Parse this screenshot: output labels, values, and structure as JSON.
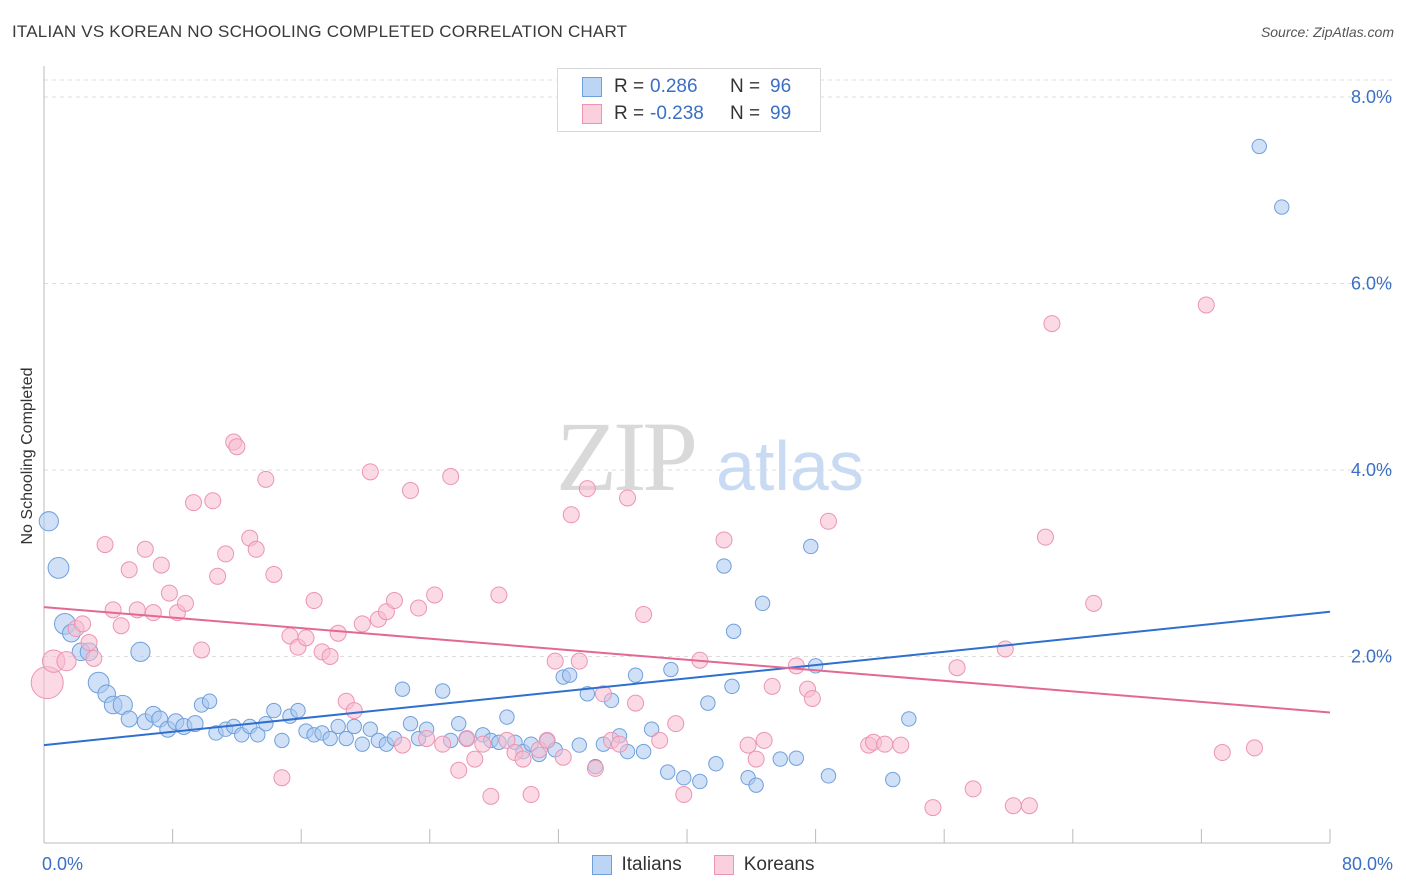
{
  "header": {
    "title": "ITALIAN VS KOREAN NO SCHOOLING COMPLETED CORRELATION CHART",
    "source": "Source: ZipAtlas.com"
  },
  "watermark": {
    "zip": "ZIP",
    "atlas": "atlas"
  },
  "legend_top": {
    "rows": [
      {
        "r_label": "R =",
        "r_value": "0.286",
        "n_label": "N =",
        "n_value": "96"
      },
      {
        "r_label": "R =",
        "r_value": "-0.238",
        "n_label": "N =",
        "n_value": "99"
      }
    ]
  },
  "legend_bottom": {
    "italians": "Italians",
    "koreans": "Koreans"
  },
  "colors": {
    "italians_fill": "#a9c8f0",
    "italians_stroke": "#6f9fdc",
    "italians_line": "#2f6fcf",
    "koreans_fill": "#f7bcd0",
    "koreans_stroke": "#ec94b2",
    "koreans_line": "#e46894",
    "tick_label": "#3b6fc4",
    "grid": "#dddddd"
  },
  "chart_data": {
    "type": "scatter",
    "title": "ITALIAN VS KOREAN NO SCHOOLING COMPLETED CORRELATION CHART",
    "xlabel": "",
    "ylabel": "No Schooling Completed",
    "xlim": [
      0,
      80
    ],
    "ylim": [
      0,
      8.0
    ],
    "x_tick_labels": [
      {
        "value": 0,
        "label": "0.0%"
      },
      {
        "value": 80,
        "label": "80.0%"
      }
    ],
    "y_tick_labels": [
      {
        "value": 2,
        "label": "2.0%"
      },
      {
        "value": 4,
        "label": "4.0%"
      },
      {
        "value": 6,
        "label": "6.0%"
      },
      {
        "value": 8,
        "label": "8.0%"
      }
    ],
    "grid": "horizontal dashed",
    "legend": "top-center",
    "series": [
      {
        "name": "Italians",
        "trend": [
          [
            0,
            1.05
          ],
          [
            80,
            2.48
          ]
        ],
        "points": [
          [
            0.3,
            3.45,
            1.2
          ],
          [
            0.9,
            2.95,
            1.3
          ],
          [
            1.3,
            2.35,
            1.3
          ],
          [
            1.7,
            2.25,
            1.1
          ],
          [
            2.3,
            2.05,
            1.1
          ],
          [
            2.8,
            2.05,
            1.1
          ],
          [
            3.4,
            1.72,
            1.3
          ],
          [
            3.9,
            1.6,
            1.1
          ],
          [
            4.3,
            1.48,
            1.1
          ],
          [
            4.9,
            1.48,
            1.2
          ],
          [
            5.3,
            1.33,
            1.0
          ],
          [
            6.0,
            2.05,
            1.2
          ],
          [
            6.3,
            1.3,
            1.0
          ],
          [
            6.8,
            1.38,
            1.0
          ],
          [
            7.2,
            1.33,
            1.0
          ],
          [
            7.7,
            1.22,
            1.0
          ],
          [
            8.2,
            1.3,
            1.0
          ],
          [
            8.7,
            1.25,
            1.0
          ],
          [
            9.4,
            1.28,
            1.0
          ],
          [
            9.8,
            1.48,
            0.9
          ],
          [
            10.3,
            1.52,
            0.9
          ],
          [
            10.7,
            1.18,
            0.9
          ],
          [
            11.3,
            1.22,
            0.9
          ],
          [
            11.8,
            1.25,
            0.9
          ],
          [
            12.3,
            1.16,
            0.9
          ],
          [
            12.8,
            1.25,
            0.9
          ],
          [
            13.3,
            1.16,
            0.9
          ],
          [
            13.8,
            1.28,
            0.9
          ],
          [
            14.3,
            1.42,
            0.9
          ],
          [
            14.8,
            1.1,
            0.9
          ],
          [
            15.3,
            1.36,
            0.9
          ],
          [
            15.8,
            1.42,
            0.9
          ],
          [
            16.3,
            1.2,
            0.9
          ],
          [
            16.8,
            1.16,
            0.9
          ],
          [
            17.3,
            1.18,
            0.9
          ],
          [
            17.8,
            1.12,
            0.9
          ],
          [
            18.3,
            1.25,
            0.9
          ],
          [
            18.8,
            1.12,
            0.9
          ],
          [
            19.3,
            1.25,
            0.9
          ],
          [
            19.8,
            1.06,
            0.9
          ],
          [
            20.3,
            1.22,
            0.9
          ],
          [
            20.8,
            1.1,
            0.9
          ],
          [
            21.3,
            1.06,
            0.9
          ],
          [
            21.8,
            1.12,
            0.9
          ],
          [
            22.3,
            1.65,
            0.9
          ],
          [
            22.8,
            1.28,
            0.9
          ],
          [
            23.3,
            1.12,
            0.9
          ],
          [
            23.8,
            1.22,
            0.9
          ],
          [
            24.8,
            1.63,
            0.9
          ],
          [
            25.3,
            1.1,
            0.9
          ],
          [
            25.8,
            1.28,
            0.9
          ],
          [
            26.3,
            1.12,
            0.9
          ],
          [
            27.3,
            1.16,
            0.9
          ],
          [
            27.8,
            1.1,
            0.9
          ],
          [
            28.3,
            1.08,
            0.9
          ],
          [
            28.8,
            1.35,
            0.9
          ],
          [
            29.3,
            1.08,
            0.9
          ],
          [
            29.8,
            0.98,
            0.9
          ],
          [
            30.3,
            1.06,
            0.9
          ],
          [
            30.8,
            0.95,
            0.9
          ],
          [
            31.3,
            1.1,
            0.9
          ],
          [
            31.8,
            1.0,
            0.9
          ],
          [
            32.3,
            1.78,
            0.9
          ],
          [
            32.7,
            1.8,
            0.9
          ],
          [
            33.3,
            1.05,
            0.9
          ],
          [
            33.8,
            1.6,
            0.9
          ],
          [
            34.3,
            0.82,
            0.9
          ],
          [
            34.8,
            1.06,
            0.9
          ],
          [
            35.3,
            1.53,
            0.9
          ],
          [
            35.8,
            1.15,
            0.9
          ],
          [
            36.3,
            0.98,
            0.9
          ],
          [
            36.8,
            1.8,
            0.9
          ],
          [
            37.3,
            0.98,
            0.9
          ],
          [
            37.8,
            1.22,
            0.9
          ],
          [
            38.8,
            0.76,
            0.9
          ],
          [
            39.0,
            1.86,
            0.9
          ],
          [
            39.8,
            0.7,
            0.9
          ],
          [
            40.8,
            0.66,
            0.9
          ],
          [
            41.3,
            1.5,
            0.9
          ],
          [
            41.8,
            0.85,
            0.9
          ],
          [
            42.3,
            2.97,
            0.9
          ],
          [
            42.8,
            1.68,
            0.9
          ],
          [
            42.9,
            2.27,
            0.9
          ],
          [
            43.8,
            0.7,
            0.9
          ],
          [
            44.3,
            0.62,
            0.9
          ],
          [
            44.7,
            2.57,
            0.9
          ],
          [
            45.8,
            0.9,
            0.9
          ],
          [
            46.8,
            0.91,
            0.9
          ],
          [
            47.7,
            3.18,
            0.9
          ],
          [
            48.8,
            0.72,
            0.9
          ],
          [
            48.0,
            1.9,
            0.9
          ],
          [
            52.8,
            0.68,
            0.9
          ],
          [
            53.8,
            1.33,
            0.9
          ],
          [
            75.6,
            7.47,
            0.9
          ],
          [
            77.0,
            6.82,
            0.9
          ]
        ]
      },
      {
        "name": "Koreans",
        "trend": [
          [
            0,
            2.53
          ],
          [
            80,
            1.4
          ]
        ],
        "points": [
          [
            0.2,
            1.72,
            2.0
          ],
          [
            0.6,
            1.95,
            1.4
          ],
          [
            1.4,
            1.95,
            1.2
          ],
          [
            2.0,
            2.3,
            1.0
          ],
          [
            2.4,
            2.35,
            1.0
          ],
          [
            2.8,
            2.15,
            1.0
          ],
          [
            3.1,
            1.98,
            1.0
          ],
          [
            3.8,
            3.2,
            1.0
          ],
          [
            4.3,
            2.5,
            1.0
          ],
          [
            4.8,
            2.33,
            1.0
          ],
          [
            5.3,
            2.93,
            1.0
          ],
          [
            5.8,
            2.5,
            1.0
          ],
          [
            6.3,
            3.15,
            1.0
          ],
          [
            6.8,
            2.47,
            1.0
          ],
          [
            7.3,
            2.98,
            1.0
          ],
          [
            7.8,
            2.68,
            1.0
          ],
          [
            8.3,
            2.47,
            1.0
          ],
          [
            8.8,
            2.57,
            1.0
          ],
          [
            9.3,
            3.65,
            1.0
          ],
          [
            9.8,
            2.07,
            1.0
          ],
          [
            10.5,
            3.67,
            1.0
          ],
          [
            10.8,
            2.86,
            1.0
          ],
          [
            11.3,
            3.1,
            1.0
          ],
          [
            11.8,
            4.3,
            1.0
          ],
          [
            12.0,
            4.25,
            1.0
          ],
          [
            12.8,
            3.27,
            1.0
          ],
          [
            13.2,
            3.15,
            1.0
          ],
          [
            13.8,
            3.9,
            1.0
          ],
          [
            14.3,
            2.88,
            1.0
          ],
          [
            14.8,
            0.7,
            1.0
          ],
          [
            15.3,
            2.22,
            1.0
          ],
          [
            15.8,
            2.1,
            1.0
          ],
          [
            16.3,
            2.2,
            1.0
          ],
          [
            16.8,
            2.6,
            1.0
          ],
          [
            17.3,
            2.05,
            1.0
          ],
          [
            17.8,
            2.0,
            1.0
          ],
          [
            18.3,
            2.25,
            1.0
          ],
          [
            18.8,
            1.52,
            1.0
          ],
          [
            19.3,
            1.42,
            1.0
          ],
          [
            19.8,
            2.35,
            1.0
          ],
          [
            20.3,
            3.98,
            1.0
          ],
          [
            20.8,
            2.4,
            1.0
          ],
          [
            21.3,
            2.48,
            1.0
          ],
          [
            21.8,
            2.6,
            1.0
          ],
          [
            22.3,
            1.05,
            1.0
          ],
          [
            22.8,
            3.78,
            1.0
          ],
          [
            23.3,
            2.52,
            1.0
          ],
          [
            23.8,
            1.12,
            1.0
          ],
          [
            24.3,
            2.66,
            1.0
          ],
          [
            24.8,
            1.06,
            1.0
          ],
          [
            25.3,
            3.93,
            1.0
          ],
          [
            25.8,
            0.78,
            1.0
          ],
          [
            26.3,
            1.12,
            1.0
          ],
          [
            26.8,
            0.9,
            1.0
          ],
          [
            27.3,
            1.06,
            1.0
          ],
          [
            27.8,
            0.5,
            1.0
          ],
          [
            28.3,
            2.66,
            1.0
          ],
          [
            28.8,
            1.1,
            1.0
          ],
          [
            29.3,
            0.97,
            1.0
          ],
          [
            29.8,
            0.9,
            1.0
          ],
          [
            30.3,
            0.52,
            1.0
          ],
          [
            30.8,
            1.0,
            1.0
          ],
          [
            31.3,
            1.1,
            1.0
          ],
          [
            31.8,
            1.95,
            1.0
          ],
          [
            32.3,
            0.92,
            1.0
          ],
          [
            32.8,
            3.52,
            1.0
          ],
          [
            33.3,
            1.95,
            1.0
          ],
          [
            33.8,
            3.8,
            1.0
          ],
          [
            34.3,
            0.8,
            1.0
          ],
          [
            34.8,
            1.6,
            1.0
          ],
          [
            35.3,
            1.1,
            1.0
          ],
          [
            35.8,
            1.06,
            1.0
          ],
          [
            36.3,
            3.7,
            1.0
          ],
          [
            36.8,
            1.5,
            1.0
          ],
          [
            37.3,
            2.45,
            1.0
          ],
          [
            38.3,
            1.1,
            1.0
          ],
          [
            39.3,
            1.28,
            1.0
          ],
          [
            39.8,
            0.52,
            1.0
          ],
          [
            40.8,
            1.96,
            1.0
          ],
          [
            42.3,
            3.25,
            1.0
          ],
          [
            43.8,
            1.05,
            1.0
          ],
          [
            44.8,
            1.1,
            1.0
          ],
          [
            44.3,
            0.9,
            1.0
          ],
          [
            45.3,
            1.68,
            1.0
          ],
          [
            46.8,
            1.9,
            1.0
          ],
          [
            47.5,
            1.65,
            1.0
          ],
          [
            47.8,
            1.55,
            1.0
          ],
          [
            48.8,
            3.45,
            1.0
          ],
          [
            51.3,
            1.05,
            1.0
          ],
          [
            51.6,
            1.08,
            1.0
          ],
          [
            52.3,
            1.06,
            1.0
          ],
          [
            53.3,
            1.05,
            1.0
          ],
          [
            55.3,
            0.38,
            1.0
          ],
          [
            56.8,
            1.88,
            1.0
          ],
          [
            57.8,
            0.58,
            1.0
          ],
          [
            59.8,
            2.08,
            1.0
          ],
          [
            60.3,
            0.4,
            1.0
          ],
          [
            61.3,
            0.4,
            1.0
          ],
          [
            62.3,
            3.28,
            1.0
          ],
          [
            62.7,
            5.57,
            1.0
          ],
          [
            65.3,
            2.57,
            1.0
          ],
          [
            72.3,
            5.77,
            1.0
          ],
          [
            73.3,
            0.97,
            1.0
          ],
          [
            75.3,
            1.02,
            1.0
          ]
        ]
      }
    ]
  }
}
